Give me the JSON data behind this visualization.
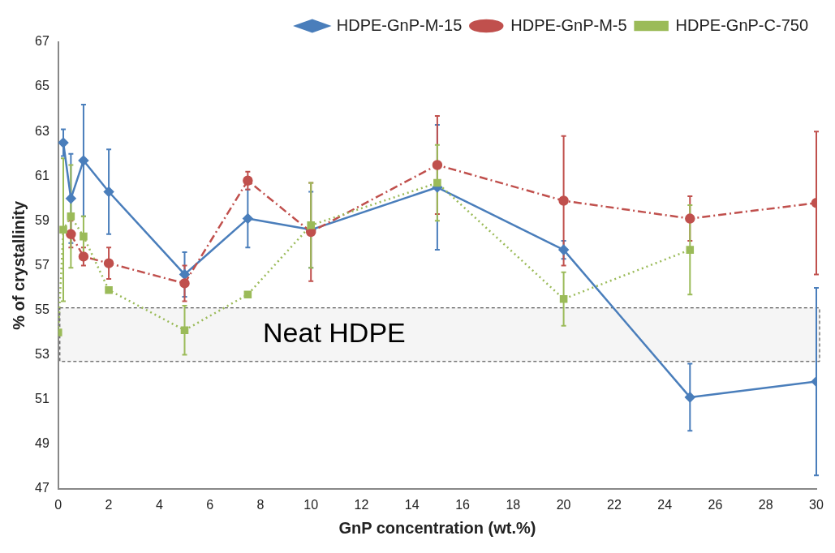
{
  "chart_data": {
    "type": "line",
    "xlabel": "GnP concentration (wt.%)",
    "ylabel": "% of crystallinity",
    "xlim": [
      0,
      30
    ],
    "xticks": [
      0,
      2,
      4,
      6,
      8,
      10,
      12,
      14,
      16,
      18,
      20,
      22,
      24,
      26,
      28,
      30
    ],
    "ylim": [
      47,
      67
    ],
    "yticks": [
      47,
      49,
      51,
      53,
      55,
      57,
      59,
      61,
      63,
      65,
      67
    ],
    "grid": false,
    "legend": "top",
    "bands": [
      {
        "axis": "y",
        "from": 52.7,
        "to": 55.1,
        "label": "Neat HDPE",
        "color": "#f5f5f5"
      }
    ],
    "series": [
      {
        "name": "HDPE-GnP-M-15",
        "color": "#4a7ebb",
        "marker": "diamond",
        "line_style": "solid",
        "x": [
          0.2,
          0.5,
          1,
          2,
          5,
          7.5,
          10,
          15,
          20,
          25,
          30
        ],
        "values": [
          62.5,
          60,
          61.7,
          60.3,
          56.6,
          59.1,
          58.6,
          60.5,
          57.7,
          51.1,
          51.8
        ],
        "errors": [
          0.6,
          2,
          2.5,
          1.9,
          1,
          1.3,
          1.7,
          2.8,
          0.4,
          1.5,
          4.2
        ]
      },
      {
        "name": "HDPE-GnP-M-5",
        "color": "#c0504d",
        "marker": "circle",
        "line_style": "dashed",
        "x": [
          0.5,
          1,
          2,
          5,
          7.5,
          10,
          15,
          20,
          25,
          30
        ],
        "values": [
          58.4,
          57.4,
          57.1,
          56.2,
          60.8,
          58.5,
          61.5,
          59.9,
          59.1,
          59.8
        ],
        "errors": [
          0.6,
          0.4,
          0.7,
          0.8,
          0.4,
          2.2,
          2.2,
          2.9,
          1,
          3.2
        ]
      },
      {
        "name": "HDPE-GnP-C-750",
        "color": "#9bbb59",
        "marker": "square",
        "line_style": "dotted",
        "x": [
          0,
          0.2,
          0.5,
          1,
          2,
          5,
          7.5,
          10,
          15,
          20,
          25
        ],
        "values": [
          54,
          58.6,
          59.2,
          58.3,
          55.9,
          54.1,
          55.7,
          58.8,
          60.7,
          55.5,
          57.7
        ],
        "errors": [
          null,
          3.2,
          2.3,
          0.9,
          null,
          1.1,
          null,
          1.9,
          1.7,
          1.2,
          2
        ]
      }
    ]
  }
}
